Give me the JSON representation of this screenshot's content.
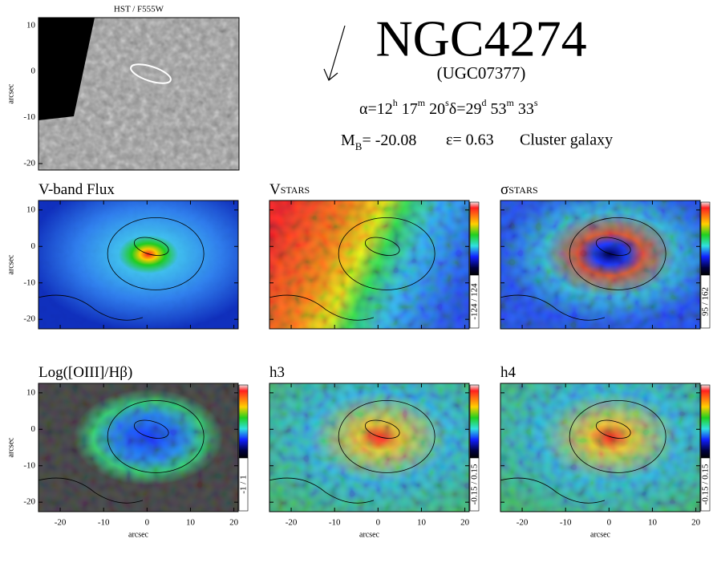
{
  "header": {
    "object": "NGC4274",
    "alt_name": "(UGC07377)",
    "coords": [
      [
        "α=12",
        "h"
      ],
      [
        " 17",
        "m"
      ],
      [
        " 20",
        "s"
      ],
      [
        "δ=29",
        "d"
      ],
      [
        " 53",
        "m"
      ],
      [
        " 33",
        "s"
      ]
    ],
    "mag_symbol": "M",
    "mag_sub": "B",
    "mag_value": "= -20.08",
    "ellipticity": "ε= 0.63",
    "environment": "Cluster galaxy"
  },
  "hst": {
    "title": "HST /  F555W",
    "ylabel": "arcsec",
    "ylim": [
      -21.4,
      11.7
    ],
    "yticks": [
      10,
      0,
      -10,
      -20
    ]
  },
  "axes": {
    "xlim": [
      -25,
      21
    ],
    "ylim": [
      -22.6,
      12.6
    ],
    "xticks": [
      -20,
      -10,
      0,
      10,
      20
    ],
    "yticks": [
      10,
      0,
      -10,
      -20
    ],
    "label": "arcsec"
  },
  "panels": [
    {
      "title": "V-band Flux"
    },
    {
      "title": "V",
      "title_sub": "STARS",
      "colorbar": "-124 / 124"
    },
    {
      "title": "σ",
      "title_sub": "STARS",
      "colorbar": "95 / 162"
    },
    {
      "title": "Log([OIII]/Hβ)",
      "colorbar": "-1 / 1"
    },
    {
      "title": "h3",
      "colorbar": "-0.15 / 0.15"
    },
    {
      "title": "h4",
      "colorbar": "-0.15 / 0.15"
    }
  ]
}
